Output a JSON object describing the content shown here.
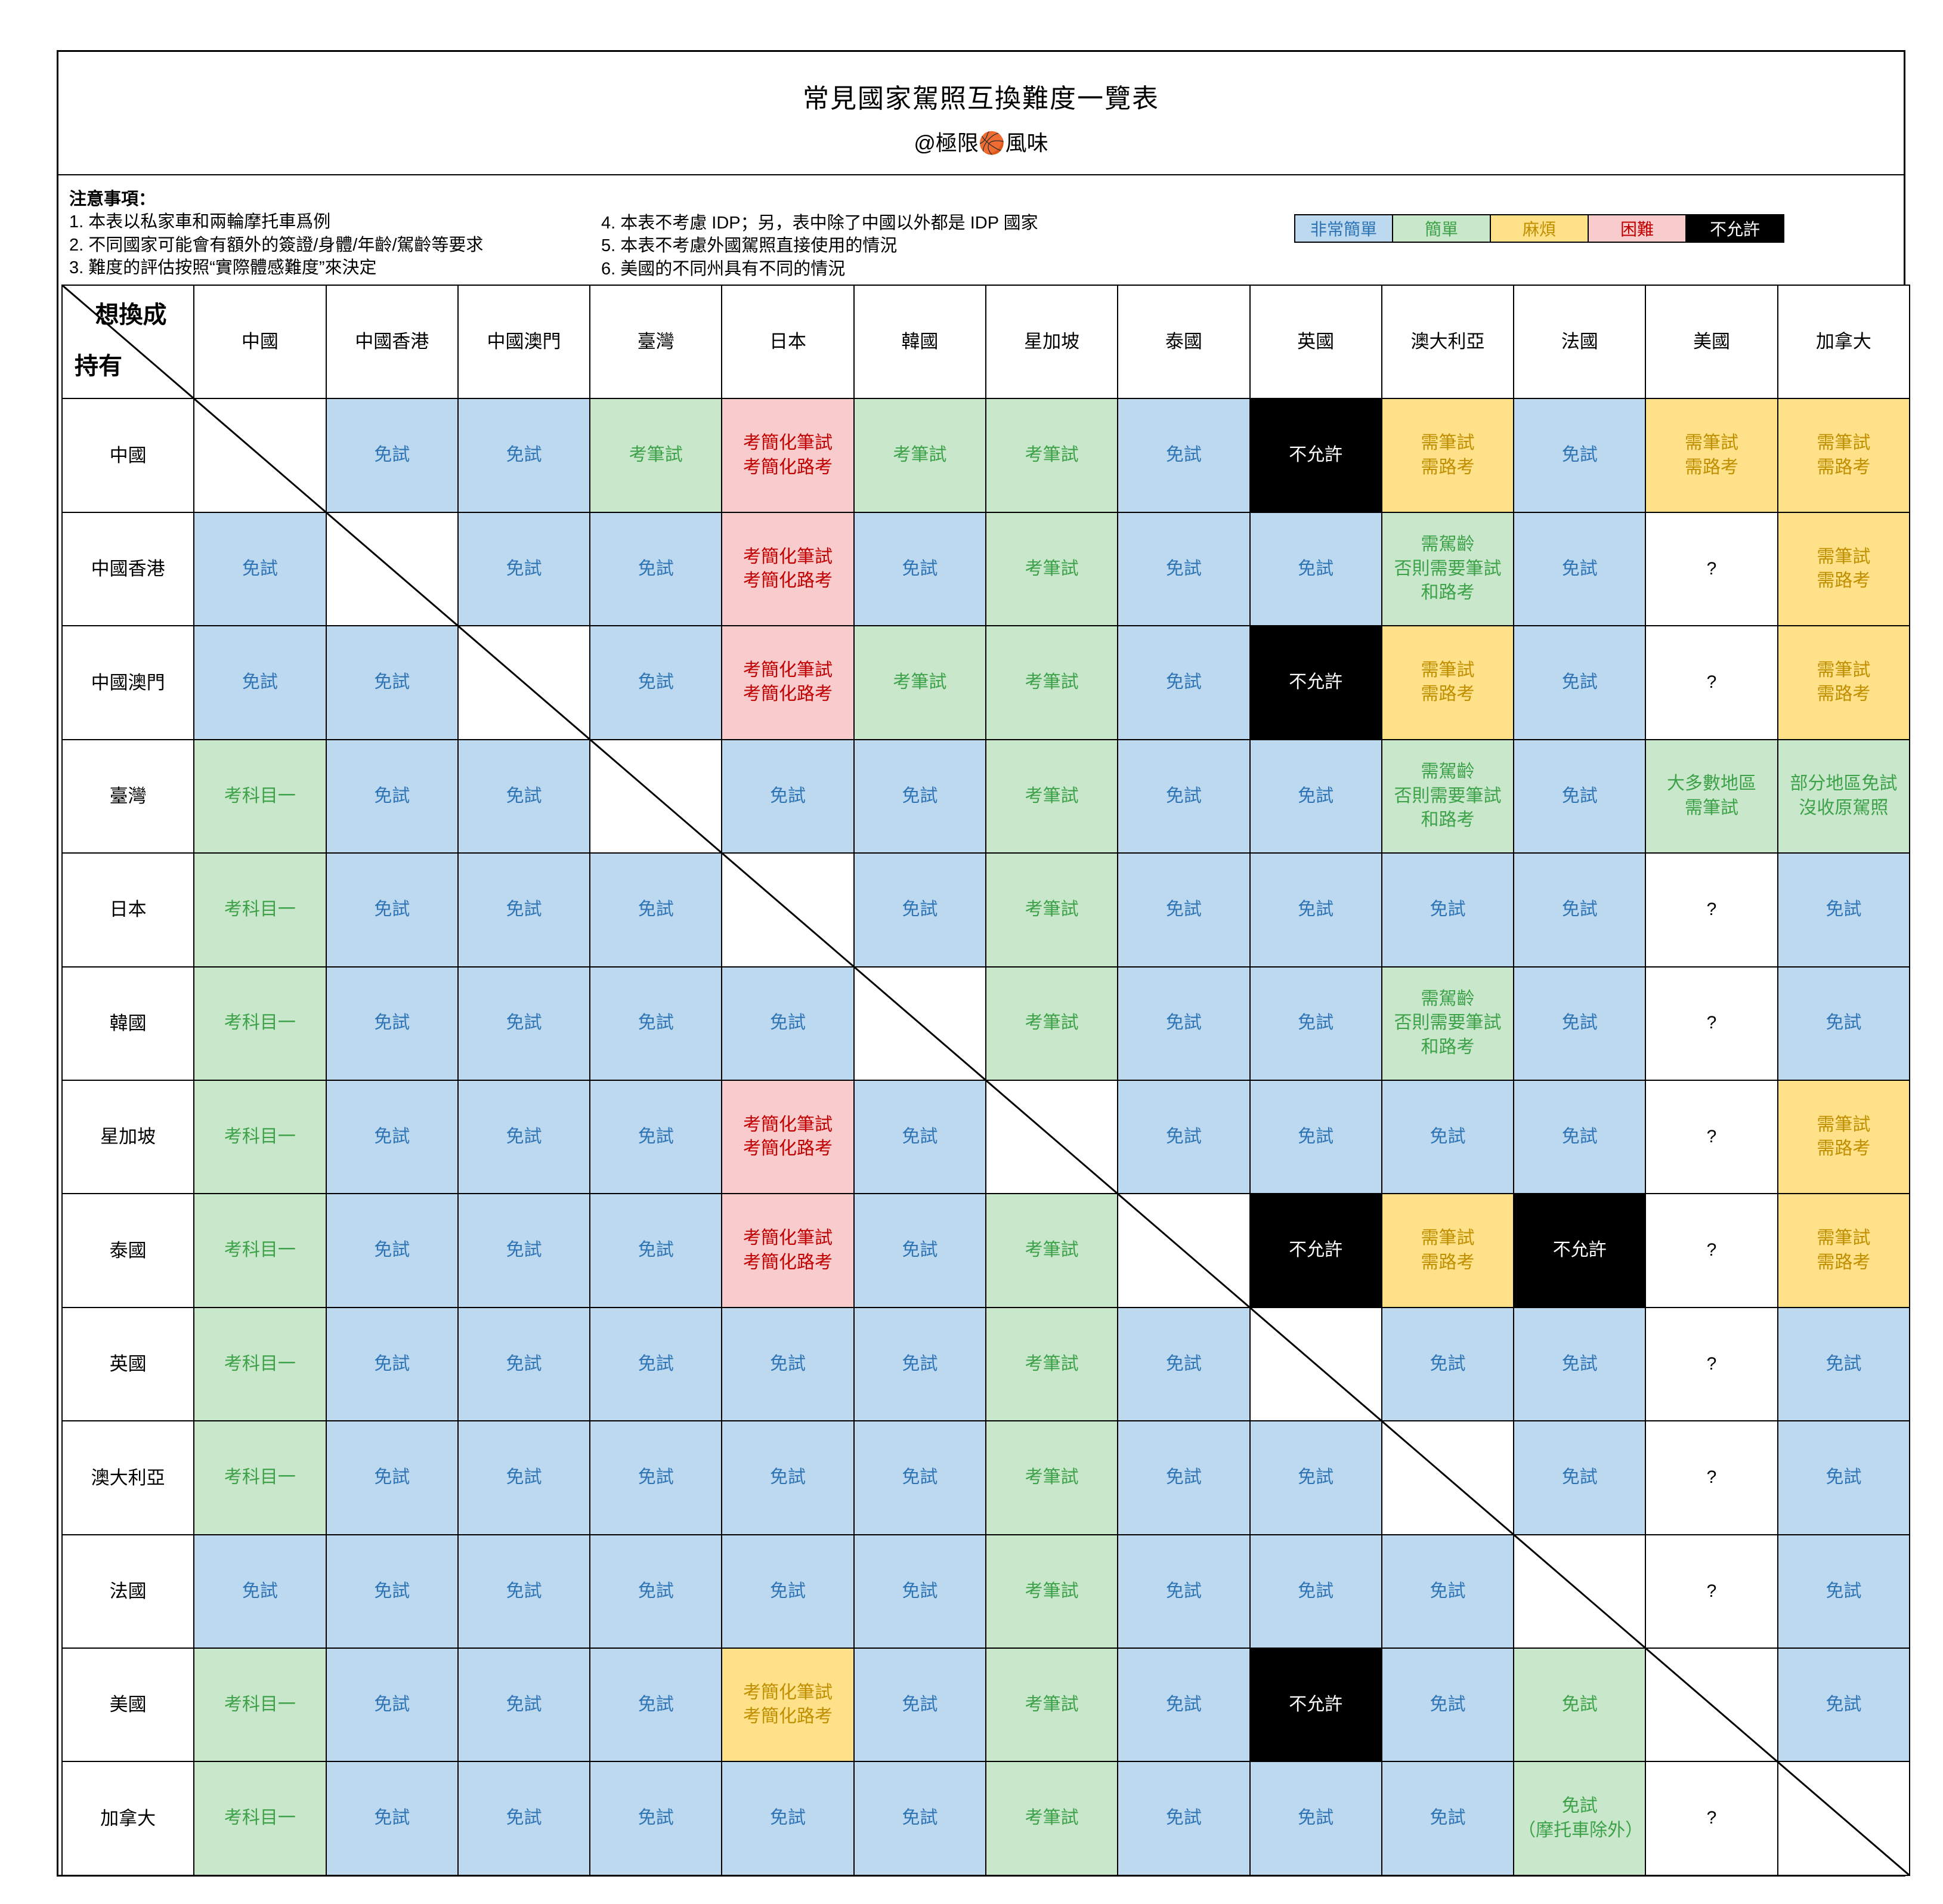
{
  "title": "常見國家駕照互換難度一覽表",
  "subtitle": "@極限🏀風味",
  "notes_heading": "注意事項：",
  "notes_left": [
    "1. 本表以私家車和兩輪摩托車爲例",
    "2. 不同國家可能會有額外的簽證/身體/年齡/駕齡等要求",
    "3. 難度的評估按照“實際體感難度”來決定"
  ],
  "notes_right": [
    "4. 本表不考慮 IDP；另，表中除了中國以外都是 IDP 國家",
    "5. 本表不考慮外國駕照直接使用的情況",
    "6. 美國的不同州具有不同的情況"
  ],
  "legend": [
    {
      "label": "非常簡單",
      "key": "blue"
    },
    {
      "label": "簡單",
      "key": "green"
    },
    {
      "label": "麻煩",
      "key": "yellow"
    },
    {
      "label": "困難",
      "key": "pink"
    },
    {
      "label": "不允許",
      "key": "black"
    }
  ],
  "corner": {
    "top": "想換成",
    "bottom": "持有"
  },
  "palette": {
    "blue": {
      "bg": "#BDD9EF",
      "fg": "#2E74B5"
    },
    "green": {
      "bg": "#C9E8CB",
      "fg": "#3DA149"
    },
    "yellow": {
      "bg": "#FFE18A",
      "fg": "#BF8F00"
    },
    "pink": {
      "bg": "#F8CBCD",
      "fg": "#C00000"
    },
    "black": {
      "bg": "#000000",
      "fg": "#FFFFFF"
    },
    "white": {
      "bg": "#FFFFFF",
      "fg": "#000000"
    },
    "diag": {
      "bg": "#FFFFFF",
      "fg": "#000000"
    }
  },
  "chart_data": {
    "type": "table",
    "title": "常見國家駕照互換難度一覽表",
    "legend_position": "top-right",
    "columns": [
      "中國",
      "中國香港",
      "中國澳門",
      "臺灣",
      "日本",
      "韓國",
      "星加坡",
      "泰國",
      "英國",
      "澳大利亞",
      "法國",
      "美國",
      "加拿大"
    ],
    "rows": [
      {
        "name": "中國",
        "cells": [
          {
            "t": "",
            "c": "diag"
          },
          {
            "t": "免試",
            "c": "blue"
          },
          {
            "t": "免試",
            "c": "blue"
          },
          {
            "t": "考筆試",
            "c": "green"
          },
          {
            "t": "考簡化筆試\n考簡化路考",
            "c": "pink"
          },
          {
            "t": "考筆試",
            "c": "green"
          },
          {
            "t": "考筆試",
            "c": "green"
          },
          {
            "t": "免試",
            "c": "blue"
          },
          {
            "t": "不允許",
            "c": "black"
          },
          {
            "t": "需筆試\n需路考",
            "c": "yellow"
          },
          {
            "t": "免試",
            "c": "blue"
          },
          {
            "t": "需筆試\n需路考",
            "c": "yellow"
          },
          {
            "t": "需筆試\n需路考",
            "c": "yellow"
          }
        ]
      },
      {
        "name": "中國香港",
        "cells": [
          {
            "t": "免試",
            "c": "blue"
          },
          {
            "t": "",
            "c": "diag"
          },
          {
            "t": "免試",
            "c": "blue"
          },
          {
            "t": "免試",
            "c": "blue"
          },
          {
            "t": "考簡化筆試\n考簡化路考",
            "c": "pink"
          },
          {
            "t": "免試",
            "c": "blue"
          },
          {
            "t": "考筆試",
            "c": "green"
          },
          {
            "t": "免試",
            "c": "blue"
          },
          {
            "t": "免試",
            "c": "blue"
          },
          {
            "t": "需駕齡\n否則需要筆試\n和路考",
            "c": "green"
          },
          {
            "t": "免試",
            "c": "blue"
          },
          {
            "t": "?",
            "c": "white"
          },
          {
            "t": "需筆試\n需路考",
            "c": "yellow"
          }
        ]
      },
      {
        "name": "中國澳門",
        "cells": [
          {
            "t": "免試",
            "c": "blue"
          },
          {
            "t": "免試",
            "c": "blue"
          },
          {
            "t": "",
            "c": "diag"
          },
          {
            "t": "免試",
            "c": "blue"
          },
          {
            "t": "考簡化筆試\n考簡化路考",
            "c": "pink"
          },
          {
            "t": "考筆試",
            "c": "green"
          },
          {
            "t": "考筆試",
            "c": "green"
          },
          {
            "t": "免試",
            "c": "blue"
          },
          {
            "t": "不允許",
            "c": "black"
          },
          {
            "t": "需筆試\n需路考",
            "c": "yellow"
          },
          {
            "t": "免試",
            "c": "blue"
          },
          {
            "t": "?",
            "c": "white"
          },
          {
            "t": "需筆試\n需路考",
            "c": "yellow"
          }
        ]
      },
      {
        "name": "臺灣",
        "cells": [
          {
            "t": "考科目一",
            "c": "green"
          },
          {
            "t": "免試",
            "c": "blue"
          },
          {
            "t": "免試",
            "c": "blue"
          },
          {
            "t": "",
            "c": "diag"
          },
          {
            "t": "免試",
            "c": "blue"
          },
          {
            "t": "免試",
            "c": "blue"
          },
          {
            "t": "考筆試",
            "c": "green"
          },
          {
            "t": "免試",
            "c": "blue"
          },
          {
            "t": "免試",
            "c": "blue"
          },
          {
            "t": "需駕齡\n否則需要筆試\n和路考",
            "c": "green"
          },
          {
            "t": "免試",
            "c": "blue"
          },
          {
            "t": "大多數地區\n需筆試",
            "c": "green"
          },
          {
            "t": "部分地區免試\n沒收原駕照",
            "c": "green"
          }
        ]
      },
      {
        "name": "日本",
        "cells": [
          {
            "t": "考科目一",
            "c": "green"
          },
          {
            "t": "免試",
            "c": "blue"
          },
          {
            "t": "免試",
            "c": "blue"
          },
          {
            "t": "免試",
            "c": "blue"
          },
          {
            "t": "",
            "c": "diag"
          },
          {
            "t": "免試",
            "c": "blue"
          },
          {
            "t": "考筆試",
            "c": "green"
          },
          {
            "t": "免試",
            "c": "blue"
          },
          {
            "t": "免試",
            "c": "blue"
          },
          {
            "t": "免試",
            "c": "blue"
          },
          {
            "t": "免試",
            "c": "blue"
          },
          {
            "t": "?",
            "c": "white"
          },
          {
            "t": "免試",
            "c": "blue"
          }
        ]
      },
      {
        "name": "韓國",
        "cells": [
          {
            "t": "考科目一",
            "c": "green"
          },
          {
            "t": "免試",
            "c": "blue"
          },
          {
            "t": "免試",
            "c": "blue"
          },
          {
            "t": "免試",
            "c": "blue"
          },
          {
            "t": "免試",
            "c": "blue"
          },
          {
            "t": "",
            "c": "diag"
          },
          {
            "t": "考筆試",
            "c": "green"
          },
          {
            "t": "免試",
            "c": "blue"
          },
          {
            "t": "免試",
            "c": "blue"
          },
          {
            "t": "需駕齡\n否則需要筆試\n和路考",
            "c": "green"
          },
          {
            "t": "免試",
            "c": "blue"
          },
          {
            "t": "?",
            "c": "white"
          },
          {
            "t": "免試",
            "c": "blue"
          }
        ]
      },
      {
        "name": "星加坡",
        "cells": [
          {
            "t": "考科目一",
            "c": "green"
          },
          {
            "t": "免試",
            "c": "blue"
          },
          {
            "t": "免試",
            "c": "blue"
          },
          {
            "t": "免試",
            "c": "blue"
          },
          {
            "t": "考簡化筆試\n考簡化路考",
            "c": "pink"
          },
          {
            "t": "免試",
            "c": "blue"
          },
          {
            "t": "",
            "c": "diag"
          },
          {
            "t": "免試",
            "c": "blue"
          },
          {
            "t": "免試",
            "c": "blue"
          },
          {
            "t": "免試",
            "c": "blue"
          },
          {
            "t": "免試",
            "c": "blue"
          },
          {
            "t": "?",
            "c": "white"
          },
          {
            "t": "需筆試\n需路考",
            "c": "yellow"
          }
        ]
      },
      {
        "name": "泰國",
        "cells": [
          {
            "t": "考科目一",
            "c": "green"
          },
          {
            "t": "免試",
            "c": "blue"
          },
          {
            "t": "免試",
            "c": "blue"
          },
          {
            "t": "免試",
            "c": "blue"
          },
          {
            "t": "考簡化筆試\n考簡化路考",
            "c": "pink"
          },
          {
            "t": "免試",
            "c": "blue"
          },
          {
            "t": "考筆試",
            "c": "green"
          },
          {
            "t": "",
            "c": "diag"
          },
          {
            "t": "不允許",
            "c": "black"
          },
          {
            "t": "需筆試\n需路考",
            "c": "yellow"
          },
          {
            "t": "不允許",
            "c": "black"
          },
          {
            "t": "?",
            "c": "white"
          },
          {
            "t": "需筆試\n需路考",
            "c": "yellow"
          }
        ]
      },
      {
        "name": "英國",
        "cells": [
          {
            "t": "考科目一",
            "c": "green"
          },
          {
            "t": "免試",
            "c": "blue"
          },
          {
            "t": "免試",
            "c": "blue"
          },
          {
            "t": "免試",
            "c": "blue"
          },
          {
            "t": "免試",
            "c": "blue"
          },
          {
            "t": "免試",
            "c": "blue"
          },
          {
            "t": "考筆試",
            "c": "green"
          },
          {
            "t": "免試",
            "c": "blue"
          },
          {
            "t": "",
            "c": "diag"
          },
          {
            "t": "免試",
            "c": "blue"
          },
          {
            "t": "免試",
            "c": "blue"
          },
          {
            "t": "?",
            "c": "white"
          },
          {
            "t": "免試",
            "c": "blue"
          }
        ]
      },
      {
        "name": "澳大利亞",
        "cells": [
          {
            "t": "考科目一",
            "c": "green"
          },
          {
            "t": "免試",
            "c": "blue"
          },
          {
            "t": "免試",
            "c": "blue"
          },
          {
            "t": "免試",
            "c": "blue"
          },
          {
            "t": "免試",
            "c": "blue"
          },
          {
            "t": "免試",
            "c": "blue"
          },
          {
            "t": "考筆試",
            "c": "green"
          },
          {
            "t": "免試",
            "c": "blue"
          },
          {
            "t": "免試",
            "c": "blue"
          },
          {
            "t": "",
            "c": "diag"
          },
          {
            "t": "免試",
            "c": "blue"
          },
          {
            "t": "?",
            "c": "white"
          },
          {
            "t": "免試",
            "c": "blue"
          }
        ]
      },
      {
        "name": "法國",
        "cells": [
          {
            "t": "免試",
            "c": "blue"
          },
          {
            "t": "免試",
            "c": "blue"
          },
          {
            "t": "免試",
            "c": "blue"
          },
          {
            "t": "免試",
            "c": "blue"
          },
          {
            "t": "免試",
            "c": "blue"
          },
          {
            "t": "免試",
            "c": "blue"
          },
          {
            "t": "考筆試",
            "c": "green"
          },
          {
            "t": "免試",
            "c": "blue"
          },
          {
            "t": "免試",
            "c": "blue"
          },
          {
            "t": "免試",
            "c": "blue"
          },
          {
            "t": "",
            "c": "diag"
          },
          {
            "t": "?",
            "c": "white"
          },
          {
            "t": "免試",
            "c": "blue"
          }
        ]
      },
      {
        "name": "美國",
        "cells": [
          {
            "t": "考科目一",
            "c": "green"
          },
          {
            "t": "免試",
            "c": "blue"
          },
          {
            "t": "免試",
            "c": "blue"
          },
          {
            "t": "免試",
            "c": "blue"
          },
          {
            "t": "考簡化筆試\n考簡化路考",
            "c": "yellow"
          },
          {
            "t": "免試",
            "c": "blue"
          },
          {
            "t": "考筆試",
            "c": "green"
          },
          {
            "t": "免試",
            "c": "blue"
          },
          {
            "t": "不允許",
            "c": "black"
          },
          {
            "t": "免試",
            "c": "blue"
          },
          {
            "t": "免試",
            "c": "green"
          },
          {
            "t": "",
            "c": "diag"
          },
          {
            "t": "免試",
            "c": "blue"
          }
        ]
      },
      {
        "name": "加拿大",
        "cells": [
          {
            "t": "考科目一",
            "c": "green"
          },
          {
            "t": "免試",
            "c": "blue"
          },
          {
            "t": "免試",
            "c": "blue"
          },
          {
            "t": "免試",
            "c": "blue"
          },
          {
            "t": "免試",
            "c": "blue"
          },
          {
            "t": "免試",
            "c": "blue"
          },
          {
            "t": "考筆試",
            "c": "green"
          },
          {
            "t": "免試",
            "c": "blue"
          },
          {
            "t": "免試",
            "c": "blue"
          },
          {
            "t": "免試",
            "c": "blue"
          },
          {
            "t": "免試\n（摩托車除外）",
            "c": "green"
          },
          {
            "t": "?",
            "c": "white"
          },
          {
            "t": "",
            "c": "diag"
          }
        ]
      }
    ]
  }
}
